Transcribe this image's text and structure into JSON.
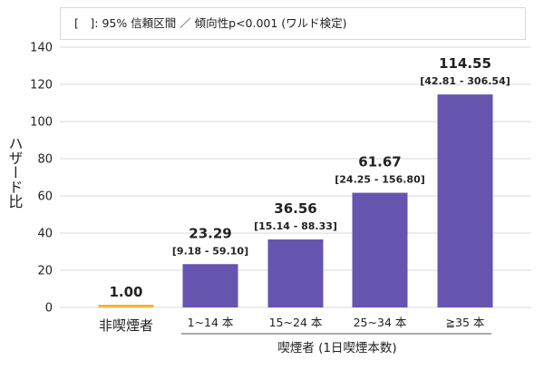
{
  "chart_data": {
    "type": "bar",
    "note": "[　]: 95% 信頼区間 ／ 傾向性p<0.001 (ワルド検定)",
    "ylabel": "ハザード比",
    "xlabel": "喫煙者 (1日喫煙本数)",
    "ylim": [
      0,
      140
    ],
    "yticks": [
      0,
      20,
      40,
      60,
      80,
      100,
      120,
      140
    ],
    "grid": true,
    "categories": [
      "非喫煙者",
      "1~14 本",
      "15~24 本",
      "25~34 本",
      "≧35 本"
    ],
    "values": [
      1.0,
      23.29,
      36.56,
      61.67,
      114.55
    ],
    "value_labels": [
      "1.00",
      "23.29",
      "36.56",
      "61.67",
      "114.55"
    ],
    "ci_labels": [
      "",
      "[9.18 - 59.10]",
      "[15.14 - 88.33]",
      "[24.25 - 156.80]",
      "[42.81 - 306.54]"
    ],
    "colors": {
      "reference": "#F5B731",
      "smoker": "#6654AE",
      "grid": "#d9d9d9",
      "text": "#222222"
    }
  }
}
